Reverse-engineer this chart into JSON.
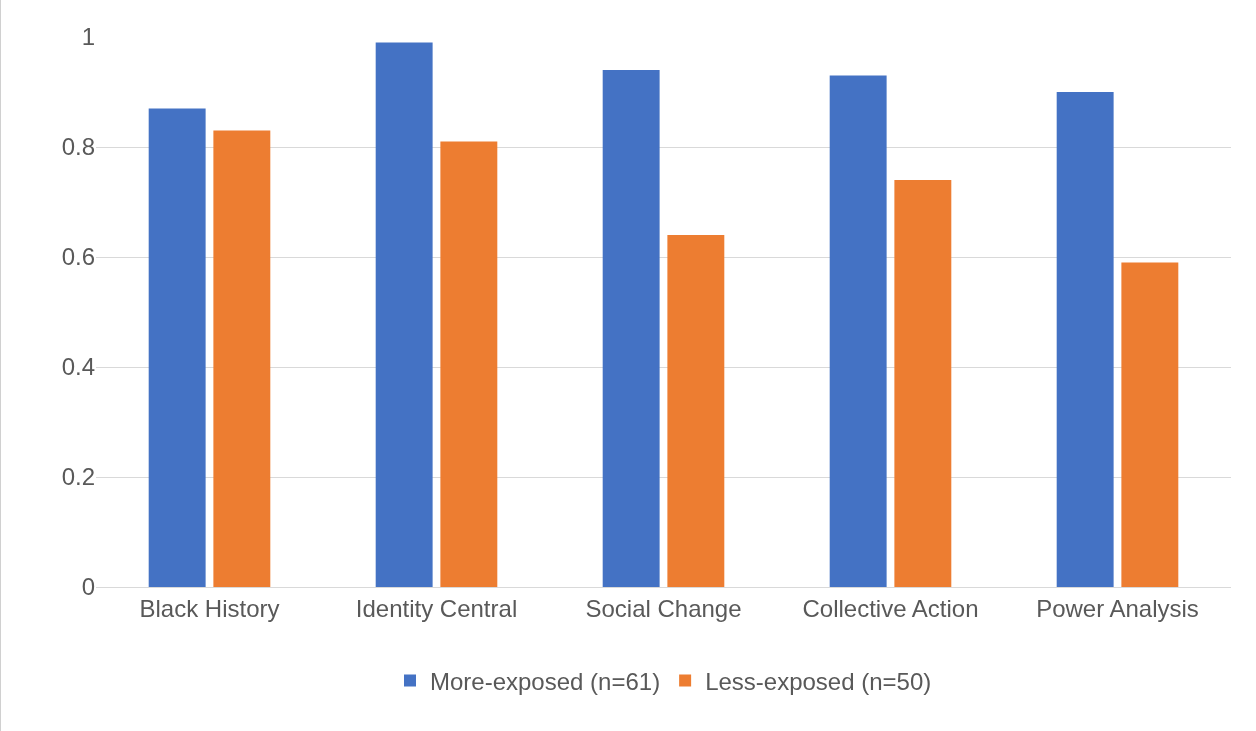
{
  "chart_data": {
    "type": "bar",
    "categories": [
      "Black History",
      "Identity Central",
      "Social Change",
      "Collective Action",
      "Power Analysis"
    ],
    "series": [
      {
        "name": "More-exposed (n=61)",
        "color": "#4472c4",
        "values": [
          0.87,
          0.99,
          0.94,
          0.93,
          0.9
        ]
      },
      {
        "name": "Less-exposed (n=50)",
        "color": "#ed7d31",
        "values": [
          0.83,
          0.81,
          0.64,
          0.74,
          0.59
        ]
      }
    ],
    "ylim": [
      0,
      1
    ],
    "yticks": [
      0,
      0.2,
      0.4,
      0.6,
      0.8,
      1
    ],
    "grid": "y",
    "legend": "bottom"
  }
}
